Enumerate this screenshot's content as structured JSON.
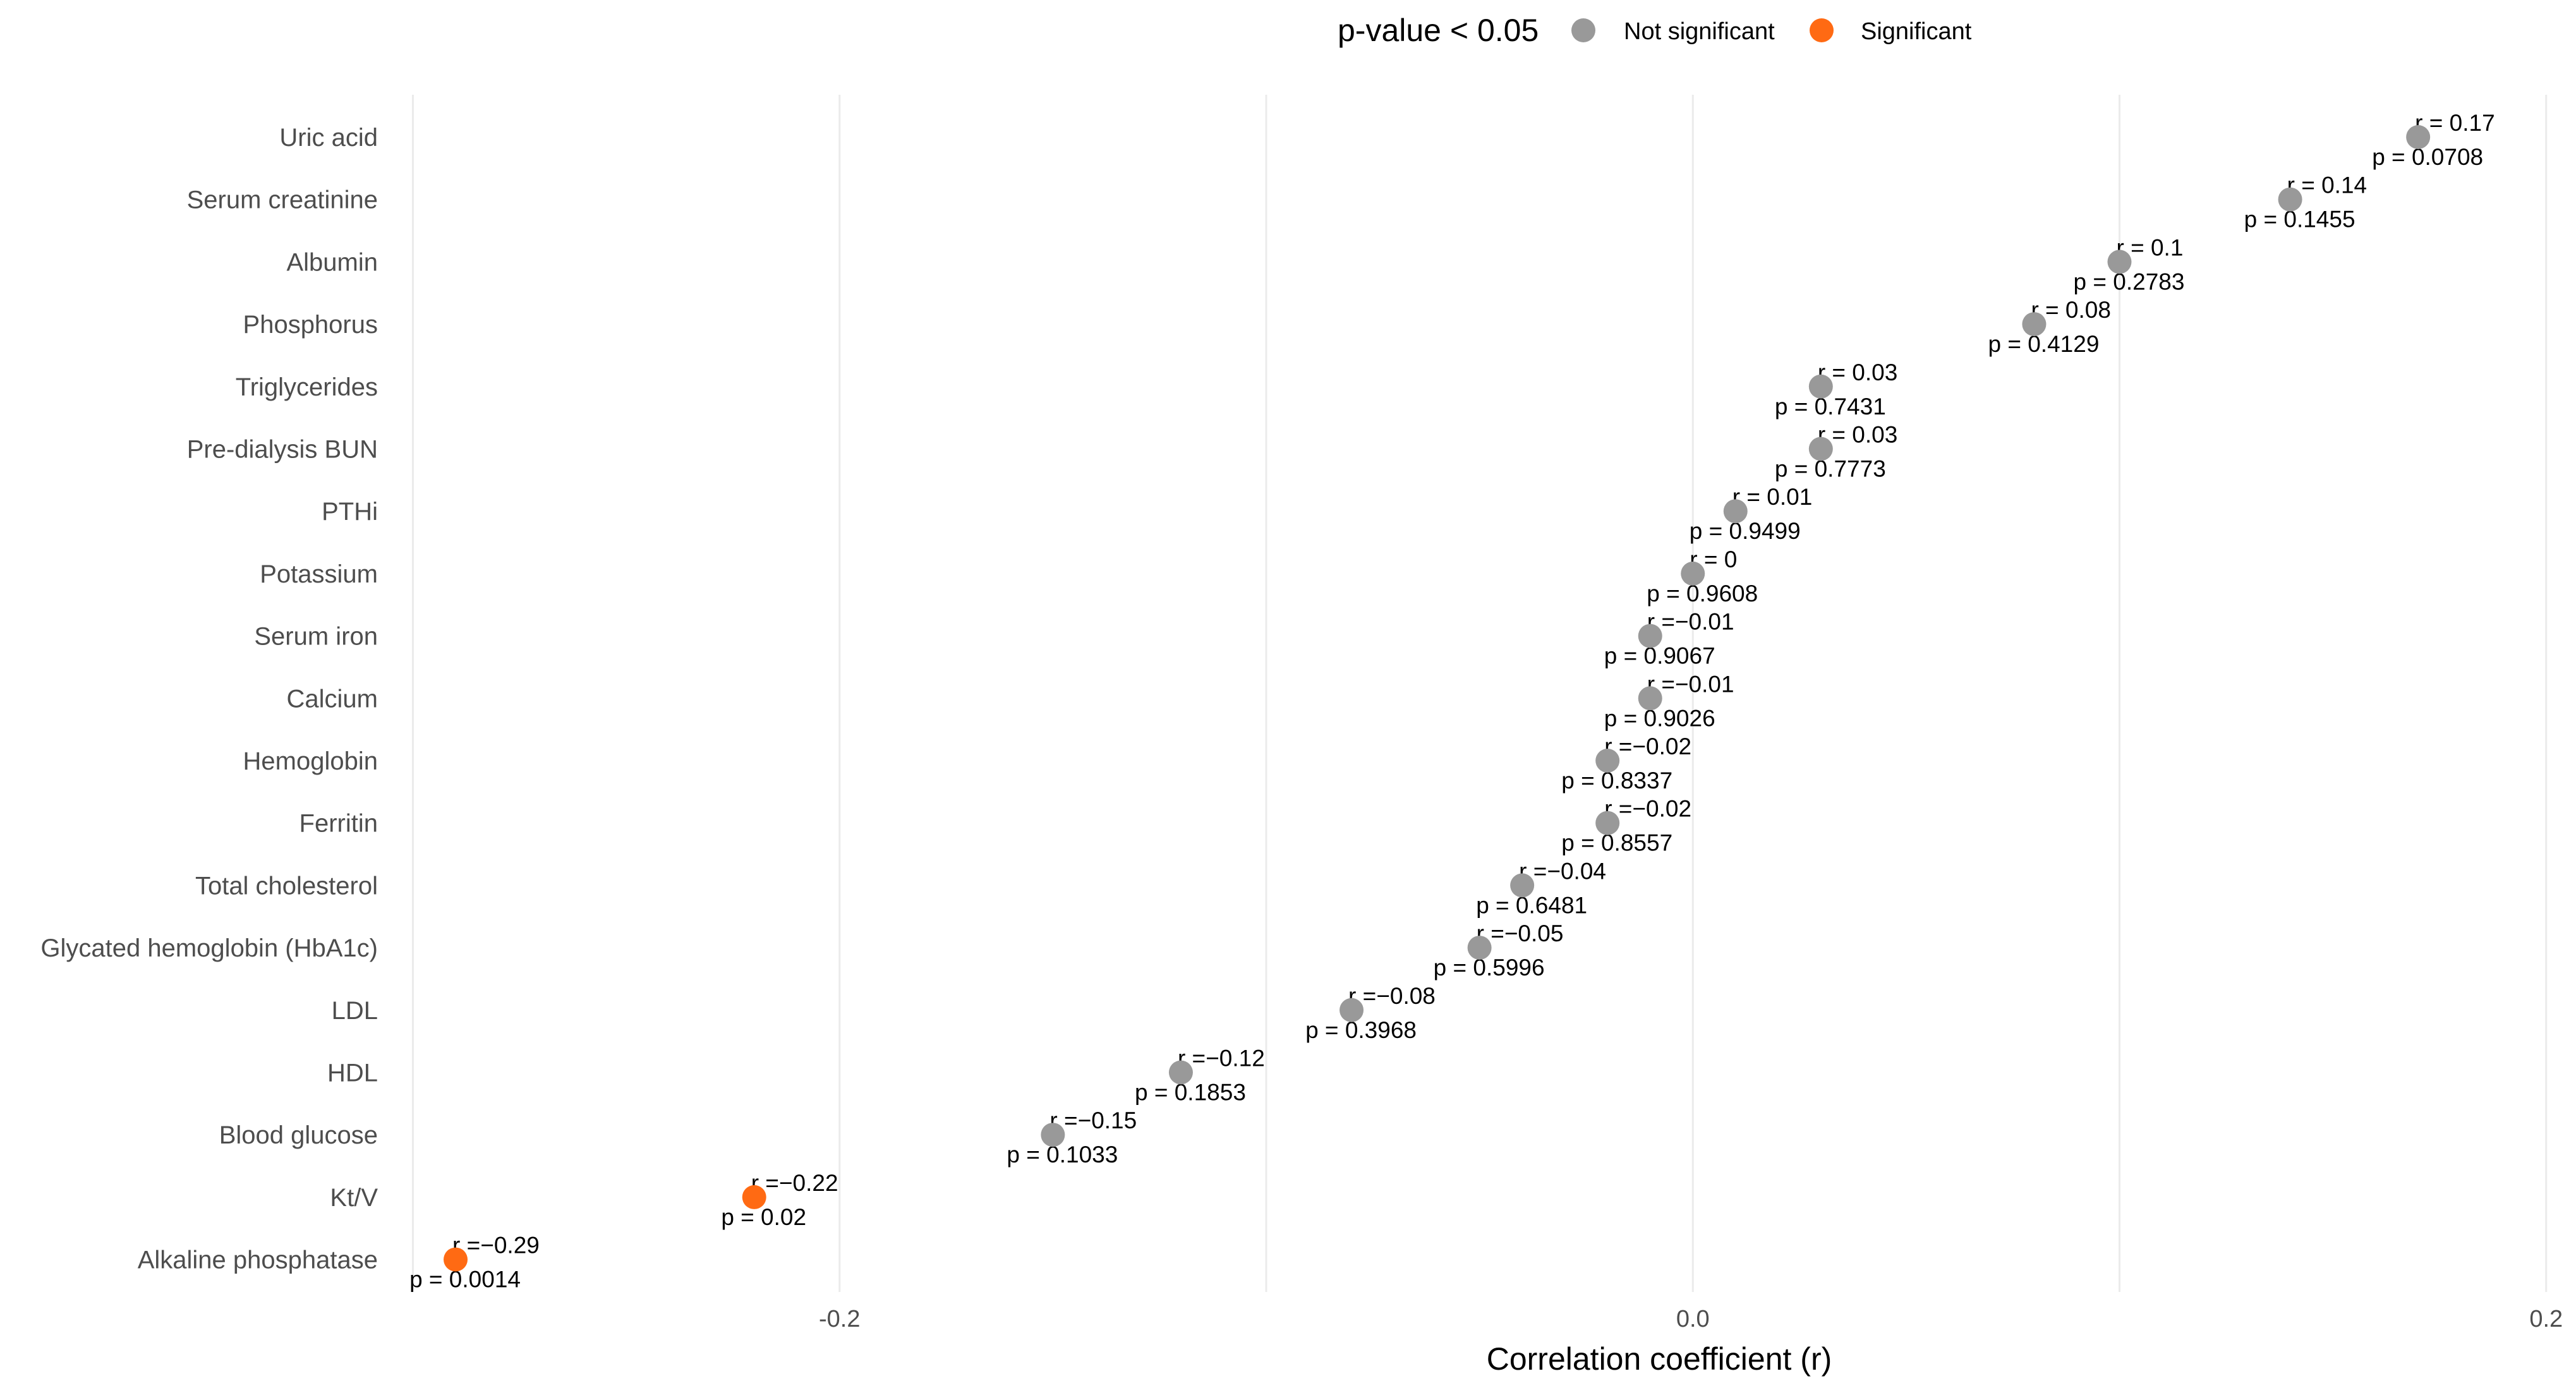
{
  "chart_data": {
    "type": "scatter",
    "xlabel": "Correlation coefficient (r)",
    "ylabel": "",
    "xlim": [
      -0.302,
      0.203
    ],
    "x_ticks": [
      -0.2,
      0.0,
      0.2
    ],
    "x_tick_labels": [
      "-0.2",
      "0.0",
      "0.2"
    ],
    "grid": true,
    "legend": {
      "title": "p-value < 0.05",
      "placement": "top",
      "entries": [
        {
          "label": "Not significant",
          "color": "#999999"
        },
        {
          "label": "Significant",
          "color": "#ff6a13"
        }
      ]
    },
    "points": [
      {
        "category": "Uric acid",
        "r": 0.17,
        "p": 0.0708,
        "r_label": "r = 0.17",
        "p_label": "p = 0.0708",
        "significant": false
      },
      {
        "category": "Serum creatinine",
        "r": 0.14,
        "p": 0.1455,
        "r_label": "r = 0.14",
        "p_label": "p = 0.1455",
        "significant": false
      },
      {
        "category": "Albumin",
        "r": 0.1,
        "p": 0.2783,
        "r_label": "r = 0.1",
        "p_label": "p = 0.2783",
        "significant": false
      },
      {
        "category": "Phosphorus",
        "r": 0.08,
        "p": 0.4129,
        "r_label": "r = 0.08",
        "p_label": "p = 0.4129",
        "significant": false
      },
      {
        "category": "Triglycerides",
        "r": 0.03,
        "p": 0.7431,
        "r_label": "r = 0.03",
        "p_label": "p = 0.7431",
        "significant": false
      },
      {
        "category": "Pre-dialysis BUN",
        "r": 0.03,
        "p": 0.7773,
        "r_label": "r = 0.03",
        "p_label": "p = 0.7773",
        "significant": false
      },
      {
        "category": "PTHi",
        "r": 0.01,
        "p": 0.9499,
        "r_label": "r = 0.01",
        "p_label": "p = 0.9499",
        "significant": false
      },
      {
        "category": "Potassium",
        "r": 0,
        "p": 0.9608,
        "r_label": "r = 0",
        "p_label": "p = 0.9608",
        "significant": false
      },
      {
        "category": "Serum iron",
        "r": -0.01,
        "p": 0.9067,
        "r_label": "r =−0.01",
        "p_label": "p = 0.9067",
        "significant": false
      },
      {
        "category": "Calcium",
        "r": -0.01,
        "p": 0.9026,
        "r_label": "r =−0.01",
        "p_label": "p = 0.9026",
        "significant": false
      },
      {
        "category": "Hemoglobin",
        "r": -0.02,
        "p": 0.8337,
        "r_label": "r =−0.02",
        "p_label": "p = 0.8337",
        "significant": false
      },
      {
        "category": "Ferritin",
        "r": -0.02,
        "p": 0.8557,
        "r_label": "r =−0.02",
        "p_label": "p = 0.8557",
        "significant": false
      },
      {
        "category": "Total cholesterol",
        "r": -0.04,
        "p": 0.6481,
        "r_label": "r =−0.04",
        "p_label": "p = 0.6481",
        "significant": false
      },
      {
        "category": "Glycated hemoglobin (HbA1c)",
        "r": -0.05,
        "p": 0.5996,
        "r_label": "r =−0.05",
        "p_label": "p = 0.5996",
        "significant": false
      },
      {
        "category": "LDL",
        "r": -0.08,
        "p": 0.3968,
        "r_label": "r =−0.08",
        "p_label": "p = 0.3968",
        "significant": false
      },
      {
        "category": "HDL",
        "r": -0.12,
        "p": 0.1853,
        "r_label": "r =−0.12",
        "p_label": "p = 0.1853",
        "significant": false
      },
      {
        "category": "Blood glucose",
        "r": -0.15,
        "p": 0.1033,
        "r_label": "r =−0.15",
        "p_label": "p = 0.1033",
        "significant": false
      },
      {
        "category": "Kt/V",
        "r": -0.22,
        "p": 0.02,
        "r_label": "r =−0.22",
        "p_label": "p = 0.02",
        "significant": true
      },
      {
        "category": "Alkaline phosphatase",
        "r": -0.29,
        "p": 0.0014,
        "r_label": "r =−0.29",
        "p_label": "p = 0.0014",
        "significant": true
      }
    ]
  }
}
